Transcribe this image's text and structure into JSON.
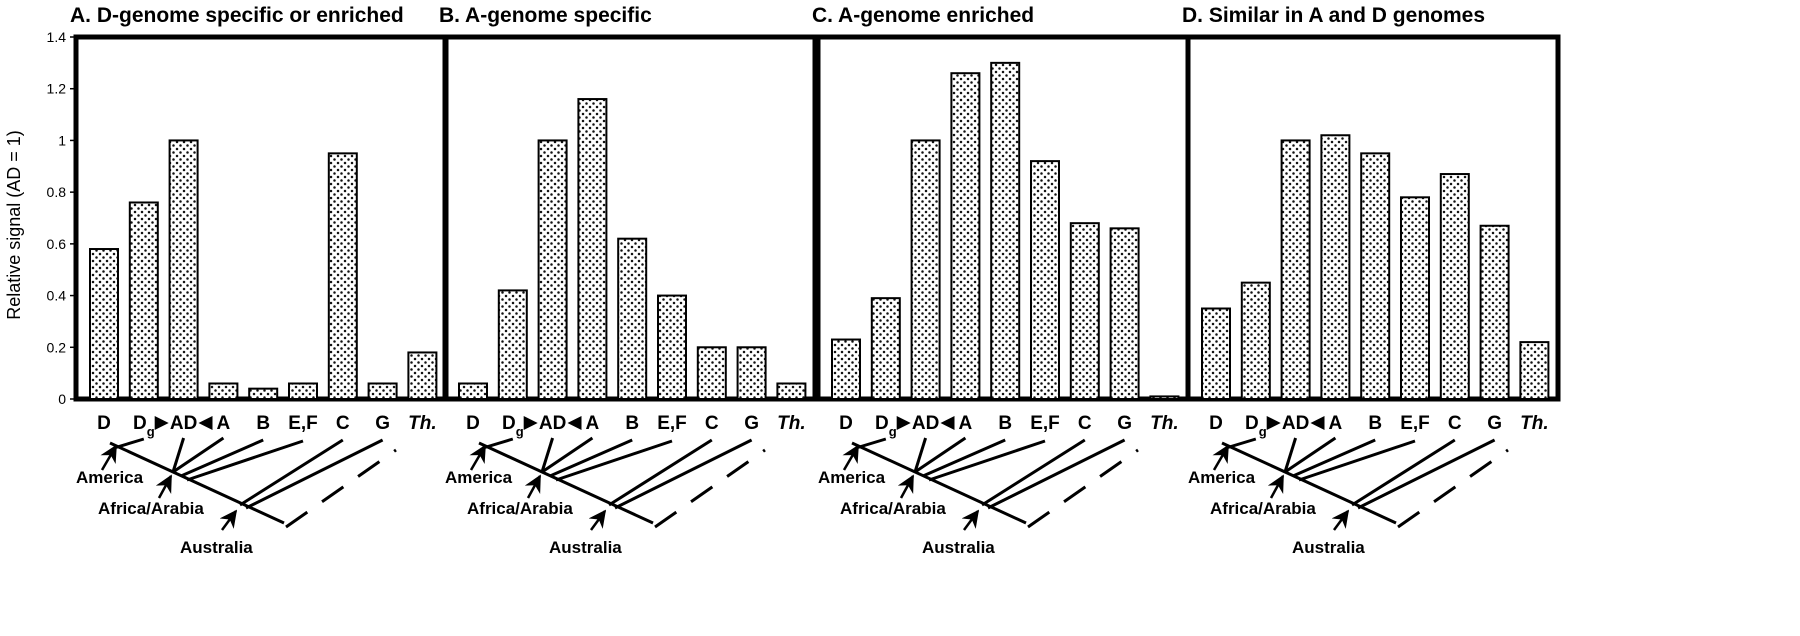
{
  "ylabel": "Relative signal (AD = 1)",
  "categories": [
    "D",
    "Dg",
    "AD",
    "A",
    "B",
    "E,F",
    "C",
    "G",
    "Th."
  ],
  "yticks": [
    "0",
    "0.2",
    "0.4",
    "0.6",
    "0.8",
    "1",
    "1.2",
    "1.4"
  ],
  "phylogeny_labels": {
    "america": "America",
    "africa": "Africa/Arabia",
    "australia": "Australia"
  },
  "chart_data": [
    {
      "type": "bar",
      "title": "A. D-genome specific or enriched",
      "categories": [
        "D",
        "Dg",
        "AD",
        "A",
        "B",
        "E,F",
        "C",
        "G",
        "Th."
      ],
      "values": [
        0.58,
        0.76,
        1.0,
        0.06,
        0.04,
        0.06,
        0.95,
        0.06,
        0.18
      ],
      "ylabel": "Relative signal (AD = 1)",
      "ylim": [
        0,
        1.4
      ],
      "grid": false
    },
    {
      "type": "bar",
      "title": "B. A-genome specific",
      "categories": [
        "D",
        "Dg",
        "AD",
        "A",
        "B",
        "E,F",
        "C",
        "G",
        "Th."
      ],
      "values": [
        0.06,
        0.42,
        1.0,
        1.16,
        0.62,
        0.4,
        0.2,
        0.2,
        0.06
      ],
      "ylim": [
        0,
        1.4
      ],
      "grid": false
    },
    {
      "type": "bar",
      "title": "C. A-genome enriched",
      "categories": [
        "D",
        "Dg",
        "AD",
        "A",
        "B",
        "E,F",
        "C",
        "G",
        "Th."
      ],
      "values": [
        0.23,
        0.39,
        1.0,
        1.26,
        1.3,
        0.92,
        0.68,
        0.66,
        0.01
      ],
      "ylim": [
        0,
        1.4
      ],
      "grid": false
    },
    {
      "type": "bar",
      "title": "D. Similar in A and D genomes",
      "categories": [
        "D",
        "Dg",
        "AD",
        "A",
        "B",
        "E,F",
        "C",
        "G",
        "Th."
      ],
      "values": [
        0.35,
        0.45,
        1.0,
        1.02,
        0.95,
        0.78,
        0.87,
        0.67,
        0.22
      ],
      "ylim": [
        0,
        1.4
      ],
      "grid": false
    }
  ]
}
